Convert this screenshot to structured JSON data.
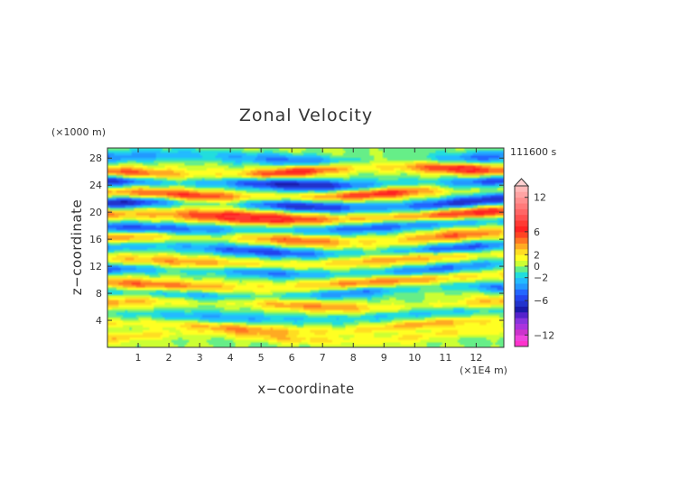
{
  "chart_data": {
    "type": "heatmap",
    "title": "Zonal Velocity",
    "xlabel": "x−coordinate",
    "ylabel": "z−coordinate",
    "x_unit": "(×1E4 m)",
    "y_unit": "(×1000 m)",
    "time_label": "111600 s",
    "xlim": [
      0,
      12.9
    ],
    "ylim": [
      0,
      29.5
    ],
    "x_ticks": [
      1,
      2,
      3,
      4,
      5,
      6,
      7,
      8,
      9,
      10,
      11,
      12
    ],
    "y_ticks": [
      4,
      8,
      12,
      16,
      20,
      24,
      28
    ],
    "grid": false,
    "colorbar": {
      "placement": "right",
      "levels": [
        -14,
        -13,
        -12,
        -11,
        -10,
        -9,
        -8,
        -7,
        -6,
        -5,
        -4,
        -3,
        -2,
        -1,
        0,
        1,
        2,
        3,
        4,
        5,
        6,
        7,
        8,
        9,
        10,
        11,
        12,
        13,
        14
      ],
      "colors": [
        "#ff33cc",
        "#ee44dd",
        "#cc33cc",
        "#aa33dd",
        "#8833dd",
        "#5522cc",
        "#1a1aaa",
        "#2233cc",
        "#2244ee",
        "#2266ff",
        "#2299ff",
        "#22bbff",
        "#22dddd",
        "#66ee88",
        "#ccff33",
        "#ffff22",
        "#ffdd22",
        "#ffaa22",
        "#ff7722",
        "#ff4422",
        "#ff2222",
        "#ff3a33",
        "#ff5050",
        "#ff6666",
        "#ff7a7a",
        "#ff8e8e",
        "#ffa3a3",
        "#ffb8b8"
      ],
      "tick_labels": [
        12,
        6,
        2,
        0,
        -2,
        -6,
        -12
      ],
      "extend": "max"
    },
    "field": {
      "nx": 180,
      "nz": 80,
      "bands": [
        {
          "z": 1.2,
          "w": 0.7,
          "a": 2.5,
          "k": 1.3,
          "p": 0.2,
          "s": 0.05
        },
        {
          "z": 2.8,
          "w": 0.7,
          "a": 3.5,
          "k": 1.1,
          "p": 1.4,
          "s": 0.04
        },
        {
          "z": 4.5,
          "w": 0.8,
          "a": -3.0,
          "k": 0.9,
          "p": 2.1,
          "s": 0.06
        },
        {
          "z": 6.2,
          "w": 0.9,
          "a": 3.5,
          "k": 1.0,
          "p": 0.6,
          "s": 0.03
        },
        {
          "z": 7.8,
          "w": 0.8,
          "a": -4.0,
          "k": 1.2,
          "p": 1.9,
          "s": 0.05
        },
        {
          "z": 9.4,
          "w": 0.9,
          "a": 4.5,
          "k": 0.8,
          "p": 3.0,
          "s": 0.04
        },
        {
          "z": 11.0,
          "w": 0.8,
          "a": -4.5,
          "k": 1.1,
          "p": 0.9,
          "s": 0.06
        },
        {
          "z": 12.6,
          "w": 0.9,
          "a": 4.0,
          "k": 0.9,
          "p": 2.5,
          "s": 0.05
        },
        {
          "z": 14.2,
          "w": 0.8,
          "a": -5.0,
          "k": 1.0,
          "p": 1.2,
          "s": 0.04
        },
        {
          "z": 15.9,
          "w": 0.9,
          "a": 4.5,
          "k": 1.2,
          "p": 0.3,
          "s": 0.05
        },
        {
          "z": 17.6,
          "w": 0.9,
          "a": -6.0,
          "k": 0.8,
          "p": 2.8,
          "s": 0.06
        },
        {
          "z": 19.2,
          "w": 1.0,
          "a": 7.5,
          "k": 0.9,
          "p": 1.6,
          "s": 0.04
        },
        {
          "z": 20.9,
          "w": 0.9,
          "a": -7.0,
          "k": 1.1,
          "p": 0.5,
          "s": 0.05
        },
        {
          "z": 22.4,
          "w": 0.9,
          "a": 7.0,
          "k": 1.0,
          "p": 2.2,
          "s": 0.06
        },
        {
          "z": 24.0,
          "w": 0.9,
          "a": -7.5,
          "k": 0.9,
          "p": 1.0,
          "s": 0.05
        },
        {
          "z": 25.8,
          "w": 0.9,
          "a": 6.5,
          "k": 1.2,
          "p": 2.9,
          "s": 0.04
        },
        {
          "z": 27.6,
          "w": 0.9,
          "a": -4.0,
          "k": 1.0,
          "p": 0.7,
          "s": 0.05
        }
      ]
    }
  }
}
